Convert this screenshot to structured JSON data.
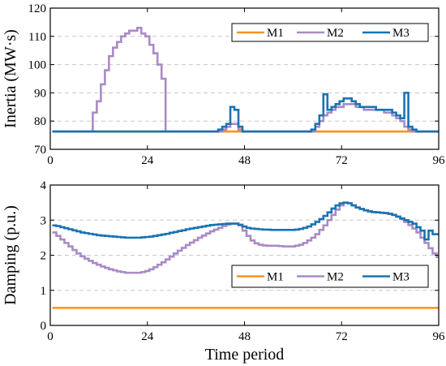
{
  "chart_data": [
    {
      "type": "line",
      "step": true,
      "title": "",
      "xlabel": "",
      "ylabel": "Inertia (MW·s)",
      "xlim": [
        0,
        96
      ],
      "ylim": [
        70,
        120
      ],
      "xticks": [
        0,
        24,
        48,
        72,
        96
      ],
      "yticks": [
        70,
        80,
        90,
        100,
        110,
        120
      ],
      "grid": "horizontal dashed",
      "legend_position": "top-right",
      "x": [
        1,
        2,
        3,
        4,
        5,
        6,
        7,
        8,
        9,
        10,
        11,
        12,
        13,
        14,
        15,
        16,
        17,
        18,
        19,
        20,
        21,
        22,
        23,
        24,
        25,
        26,
        27,
        28,
        29,
        30,
        31,
        32,
        33,
        34,
        35,
        36,
        37,
        38,
        39,
        40,
        41,
        42,
        43,
        44,
        45,
        46,
        47,
        48,
        49,
        50,
        51,
        52,
        53,
        54,
        55,
        56,
        57,
        58,
        59,
        60,
        61,
        62,
        63,
        64,
        65,
        66,
        67,
        68,
        69,
        70,
        71,
        72,
        73,
        74,
        75,
        76,
        77,
        78,
        79,
        80,
        81,
        82,
        83,
        84,
        85,
        86,
        87,
        88,
        89,
        90,
        91,
        92,
        93,
        94,
        95,
        96
      ],
      "series": [
        {
          "name": "M1",
          "color": "#f7931e",
          "values": [
            76.3,
            76.3,
            76.3,
            76.3,
            76.3,
            76.3,
            76.3,
            76.3,
            76.3,
            76.3,
            76.3,
            76.3,
            76.3,
            76.3,
            76.3,
            76.3,
            76.3,
            76.3,
            76.3,
            76.3,
            76.3,
            76.3,
            76.3,
            76.3,
            76.3,
            76.3,
            76.3,
            76.3,
            76.3,
            76.3,
            76.3,
            76.3,
            76.3,
            76.3,
            76.3,
            76.3,
            76.3,
            76.3,
            76.3,
            76.3,
            76.3,
            76.3,
            76.3,
            76.3,
            76.3,
            76.3,
            76.3,
            76.3,
            76.3,
            76.3,
            76.3,
            76.3,
            76.3,
            76.3,
            76.3,
            76.3,
            76.3,
            76.3,
            76.3,
            76.3,
            76.3,
            76.3,
            76.3,
            76.3,
            76.3,
            76.3,
            76.3,
            76.3,
            76.3,
            76.3,
            76.3,
            76.3,
            76.3,
            76.3,
            76.3,
            76.3,
            76.3,
            76.3,
            76.3,
            76.3,
            76.3,
            76.3,
            76.3,
            76.3,
            76.3,
            76.3,
            76.3,
            76.3,
            76.3,
            76.3,
            76.3,
            76.3,
            76.3,
            76.3,
            76.3,
            76.3
          ]
        },
        {
          "name": "M2",
          "color": "#a98bc4",
          "values": [
            76.3,
            76.3,
            76.3,
            76.3,
            76.3,
            76.3,
            76.3,
            76.3,
            76.3,
            76.3,
            83,
            87,
            93,
            98,
            103,
            106,
            108,
            110,
            111,
            112,
            112,
            113,
            111,
            110,
            107,
            104,
            100,
            95,
            76.3,
            76.3,
            76.3,
            76.3,
            76.3,
            76.3,
            76.3,
            76.3,
            76.3,
            76.3,
            76.3,
            76.3,
            76.3,
            76.3,
            77,
            78,
            79,
            79,
            77,
            76.3,
            76.3,
            76.3,
            76.3,
            76.3,
            76.3,
            76.3,
            76.3,
            76.3,
            76.3,
            76.3,
            76.3,
            76.3,
            76.3,
            76.3,
            76.3,
            76.3,
            76.3,
            78,
            80,
            82,
            83,
            84,
            85,
            85,
            86,
            86,
            86,
            85,
            85,
            84,
            84,
            84,
            84,
            84,
            83,
            83,
            82,
            81,
            80,
            78,
            77,
            76.3,
            76.3,
            76.3,
            76.3,
            76.3,
            76.3,
            76.3
          ]
        },
        {
          "name": "M3",
          "color": "#1a73b2",
          "values": [
            76.3,
            76.3,
            76.3,
            76.3,
            76.3,
            76.3,
            76.3,
            76.3,
            76.3,
            76.3,
            76.3,
            76.3,
            76.3,
            76.3,
            76.3,
            76.3,
            76.3,
            76.3,
            76.3,
            76.3,
            76.3,
            76.3,
            76.3,
            76.3,
            76.3,
            76.3,
            76.3,
            76.3,
            76.3,
            76.3,
            76.3,
            76.3,
            76.3,
            76.3,
            76.3,
            76.3,
            76.3,
            76.3,
            76.3,
            76.3,
            76.3,
            77,
            78,
            79,
            85,
            84,
            78,
            76.3,
            76.3,
            76.3,
            76.3,
            76.3,
            76.3,
            76.3,
            76.3,
            76.3,
            76.3,
            76.3,
            76.3,
            76.3,
            76.3,
            76.3,
            76.3,
            76.3,
            77,
            79,
            82,
            89.5,
            84,
            85,
            86,
            87,
            88,
            88,
            87,
            86,
            85,
            85,
            85,
            85,
            84,
            84,
            84,
            84,
            83,
            82,
            81,
            90,
            78,
            77,
            76.3,
            76.3,
            76.3,
            76.3,
            76.3,
            76.3
          ]
        }
      ]
    },
    {
      "type": "line",
      "step": true,
      "title": "",
      "xlabel": "Time period",
      "ylabel": "Damping (p.u.)",
      "xlim": [
        0,
        96
      ],
      "ylim": [
        0,
        4
      ],
      "xticks": [
        0,
        24,
        48,
        72,
        96
      ],
      "yticks": [
        0,
        1,
        2,
        3,
        4
      ],
      "grid": "horizontal dashed",
      "legend_position": "lower-right",
      "x": [
        1,
        2,
        3,
        4,
        5,
        6,
        7,
        8,
        9,
        10,
        11,
        12,
        13,
        14,
        15,
        16,
        17,
        18,
        19,
        20,
        21,
        22,
        23,
        24,
        25,
        26,
        27,
        28,
        29,
        30,
        31,
        32,
        33,
        34,
        35,
        36,
        37,
        38,
        39,
        40,
        41,
        42,
        43,
        44,
        45,
        46,
        47,
        48,
        49,
        50,
        51,
        52,
        53,
        54,
        55,
        56,
        57,
        58,
        59,
        60,
        61,
        62,
        63,
        64,
        65,
        66,
        67,
        68,
        69,
        70,
        71,
        72,
        73,
        74,
        75,
        76,
        77,
        78,
        79,
        80,
        81,
        82,
        83,
        84,
        85,
        86,
        87,
        88,
        89,
        90,
        91,
        92,
        93,
        94,
        95,
        96
      ],
      "series": [
        {
          "name": "M1",
          "color": "#f7931e",
          "values": [
            0.5,
            0.5,
            0.5,
            0.5,
            0.5,
            0.5,
            0.5,
            0.5,
            0.5,
            0.5,
            0.5,
            0.5,
            0.5,
            0.5,
            0.5,
            0.5,
            0.5,
            0.5,
            0.5,
            0.5,
            0.5,
            0.5,
            0.5,
            0.5,
            0.5,
            0.5,
            0.5,
            0.5,
            0.5,
            0.5,
            0.5,
            0.5,
            0.5,
            0.5,
            0.5,
            0.5,
            0.5,
            0.5,
            0.5,
            0.5,
            0.5,
            0.5,
            0.5,
            0.5,
            0.5,
            0.5,
            0.5,
            0.5,
            0.5,
            0.5,
            0.5,
            0.5,
            0.5,
            0.5,
            0.5,
            0.5,
            0.5,
            0.5,
            0.5,
            0.5,
            0.5,
            0.5,
            0.5,
            0.5,
            0.5,
            0.5,
            0.5,
            0.5,
            0.5,
            0.5,
            0.5,
            0.5,
            0.5,
            0.5,
            0.5,
            0.5,
            0.5,
            0.5,
            0.5,
            0.5,
            0.5,
            0.5,
            0.5,
            0.5,
            0.5,
            0.5,
            0.5,
            0.5,
            0.5,
            0.5,
            0.5,
            0.5,
            0.5,
            0.5,
            0.5,
            0.5
          ]
        },
        {
          "name": "M2",
          "color": "#a98bc4",
          "values": [
            2.65,
            2.55,
            2.45,
            2.35,
            2.25,
            2.15,
            2.05,
            1.97,
            1.9,
            1.84,
            1.78,
            1.73,
            1.68,
            1.64,
            1.6,
            1.57,
            1.54,
            1.52,
            1.5,
            1.5,
            1.5,
            1.5,
            1.52,
            1.55,
            1.6,
            1.66,
            1.73,
            1.8,
            1.88,
            1.96,
            2.05,
            2.13,
            2.21,
            2.29,
            2.36,
            2.43,
            2.5,
            2.56,
            2.62,
            2.68,
            2.73,
            2.78,
            2.83,
            2.87,
            2.9,
            2.9,
            2.85,
            2.7,
            2.55,
            2.42,
            2.34,
            2.3,
            2.28,
            2.27,
            2.27,
            2.27,
            2.26,
            2.25,
            2.25,
            2.25,
            2.27,
            2.3,
            2.35,
            2.42,
            2.5,
            2.6,
            2.72,
            2.85,
            3.0,
            3.15,
            3.3,
            3.42,
            3.5,
            3.48,
            3.42,
            3.36,
            3.32,
            3.28,
            3.25,
            3.23,
            3.22,
            3.21,
            3.2,
            3.18,
            3.15,
            3.1,
            3.03,
            2.95,
            2.86,
            2.76,
            2.65,
            2.5,
            2.35,
            2.2,
            2.05,
            1.95
          ]
        },
        {
          "name": "M3",
          "color": "#1a73b2",
          "values": [
            2.85,
            2.83,
            2.8,
            2.77,
            2.74,
            2.71,
            2.68,
            2.65,
            2.63,
            2.61,
            2.59,
            2.57,
            2.56,
            2.55,
            2.54,
            2.53,
            2.52,
            2.51,
            2.5,
            2.5,
            2.5,
            2.5,
            2.51,
            2.52,
            2.53,
            2.55,
            2.57,
            2.59,
            2.61,
            2.64,
            2.66,
            2.69,
            2.71,
            2.74,
            2.76,
            2.78,
            2.8,
            2.82,
            2.84,
            2.86,
            2.87,
            2.88,
            2.89,
            2.9,
            2.9,
            2.9,
            2.87,
            2.82,
            2.78,
            2.76,
            2.75,
            2.74,
            2.73,
            2.73,
            2.72,
            2.72,
            2.72,
            2.72,
            2.72,
            2.72,
            2.73,
            2.75,
            2.78,
            2.82,
            2.88,
            2.95,
            3.03,
            3.12,
            3.22,
            3.33,
            3.42,
            3.48,
            3.5,
            3.48,
            3.42,
            3.36,
            3.32,
            3.28,
            3.25,
            3.23,
            3.22,
            3.21,
            3.2,
            3.18,
            3.15,
            3.1,
            3.05,
            3.0,
            2.95,
            2.9,
            2.8,
            2.7,
            2.45,
            2.7,
            2.6,
            2.6
          ]
        }
      ]
    }
  ]
}
